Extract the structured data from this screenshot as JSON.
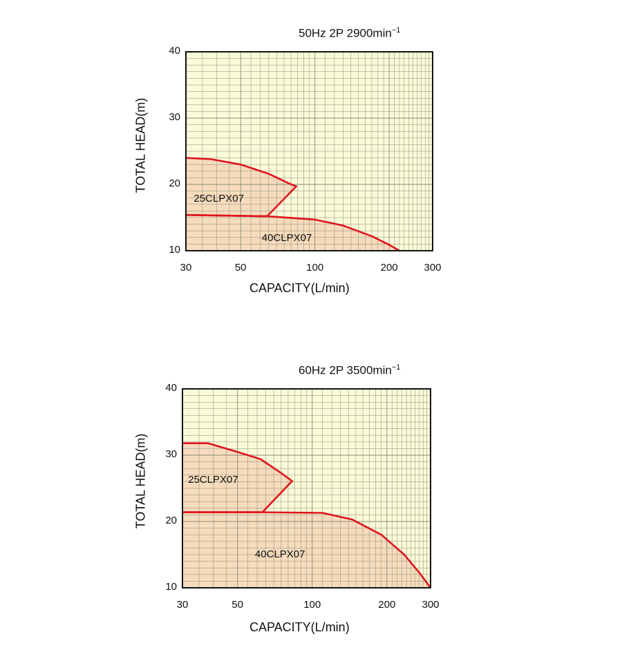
{
  "chart_data": [
    {
      "type": "area",
      "title": "50Hz 2P 2900min",
      "title_sup": "−1",
      "xlabel": "CAPACITY(L/min)",
      "ylabel": "TOTAL HEAD(m)",
      "x_scale": "log",
      "xlim": [
        30,
        300
      ],
      "ylim": [
        10,
        40
      ],
      "x_ticks": [
        30,
        50,
        100,
        200,
        300
      ],
      "x_tick_labels": [
        "30",
        "50",
        "100",
        "200",
        "300"
      ],
      "y_ticks": [
        10,
        20,
        30,
        40
      ],
      "y_tick_labels": [
        "10",
        "20",
        "30",
        "40"
      ],
      "colors": {
        "plot_bg": "#fafad8",
        "fill": "#f6dcbc",
        "curve": "#e0141e",
        "grid": "#8a8a7a"
      },
      "series": [
        {
          "name": "25CLPX07",
          "points": [
            [
              30,
              24.0
            ],
            [
              38,
              23.8
            ],
            [
              50,
              23.0
            ],
            [
              65,
              21.6
            ],
            [
              78,
              20.2
            ],
            [
              84,
              19.7
            ],
            [
              64,
              15.2
            ],
            [
              30,
              15.4
            ]
          ],
          "label_at": [
            44,
            17.7
          ]
        },
        {
          "name": "40CLPX07",
          "points": [
            [
              30,
              15.4
            ],
            [
              64,
              15.2
            ],
            [
              100,
              14.7
            ],
            [
              130,
              13.8
            ],
            [
              170,
              12.2
            ],
            [
              200,
              10.9
            ],
            [
              220,
              10.0
            ],
            [
              30,
              10.0
            ]
          ],
          "label_at": [
            83,
            11.8
          ]
        }
      ]
    },
    {
      "type": "area",
      "title": "60Hz 2P 3500min",
      "title_sup": "−1",
      "xlabel": "CAPACITY(L/min)",
      "ylabel": "TOTAL HEAD(m)",
      "x_scale": "log",
      "xlim": [
        30,
        300
      ],
      "ylim": [
        10,
        40
      ],
      "x_ticks": [
        30,
        50,
        100,
        200,
        300
      ],
      "x_tick_labels": [
        "30",
        "50",
        "100",
        "200",
        "300"
      ],
      "y_ticks": [
        10,
        20,
        30,
        40
      ],
      "y_tick_labels": [
        "10",
        "20",
        "30",
        "40"
      ],
      "colors": {
        "plot_bg": "#fafad8",
        "fill": "#f6dcbc",
        "curve": "#e0141e",
        "grid": "#8a8a7a"
      },
      "series": [
        {
          "name": "25CLPX07",
          "points": [
            [
              30,
              31.8
            ],
            [
              38,
              31.8
            ],
            [
              50,
              30.5
            ],
            [
              62,
              29.4
            ],
            [
              75,
              27.3
            ],
            [
              83,
              26.1
            ],
            [
              63,
              21.4
            ],
            [
              30,
              21.4
            ]
          ],
          "label_at": [
            43,
            26.1
          ]
        },
        {
          "name": "40CLPX07",
          "points": [
            [
              30,
              21.4
            ],
            [
              63,
              21.4
            ],
            [
              110,
              21.3
            ],
            [
              145,
              20.3
            ],
            [
              190,
              18.0
            ],
            [
              235,
              15.0
            ],
            [
              270,
              12.3
            ],
            [
              300,
              10.0
            ],
            [
              30,
              10.0
            ]
          ],
          "label_at": [
            80,
            14.9
          ]
        }
      ]
    }
  ]
}
